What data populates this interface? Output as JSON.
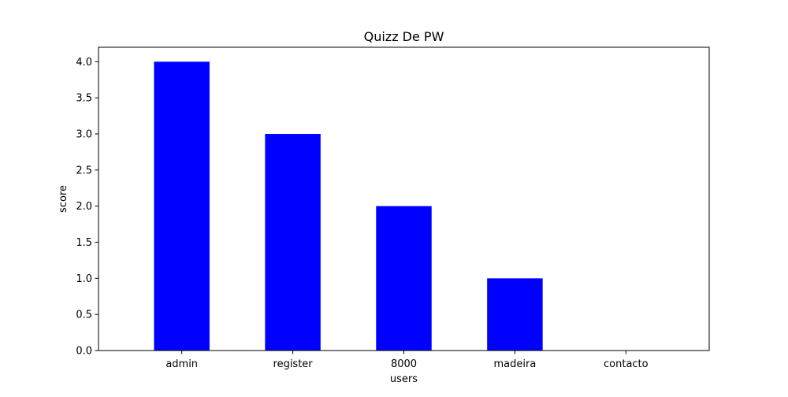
{
  "chart_data": {
    "type": "bar",
    "title": "Quizz De PW",
    "xlabel": "users",
    "ylabel": "score",
    "categories": [
      "admin",
      "register",
      "8000",
      "madeira",
      "contacto"
    ],
    "values": [
      4,
      3,
      2,
      1,
      0
    ],
    "ylim": [
      0,
      4.2
    ],
    "yticks": [
      "0.0",
      "0.5",
      "1.0",
      "1.5",
      "2.0",
      "2.5",
      "3.0",
      "3.5",
      "4.0"
    ],
    "bar_color": "#0000ff",
    "grid": false,
    "legend": "none"
  }
}
